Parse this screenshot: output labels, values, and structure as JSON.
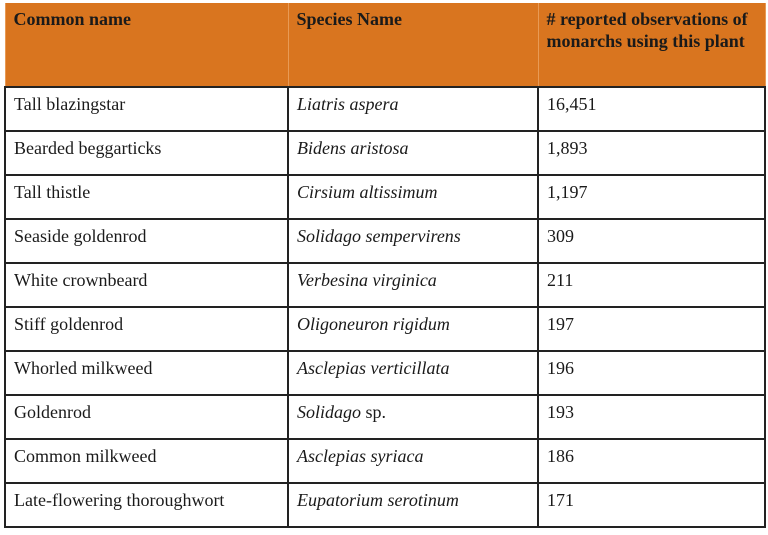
{
  "table": {
    "headers": [
      "Common name",
      "Species Name",
      "# reported observations of monarchs using this plant"
    ],
    "rows": [
      {
        "common": "Tall blazingstar",
        "species_italic": "Liatris aspera",
        "species_plain": "",
        "count": "16,451"
      },
      {
        "common": "Bearded beggarticks",
        "species_italic": "Bidens aristosa",
        "species_plain": "",
        "count": "1,893"
      },
      {
        "common": "Tall thistle",
        "species_italic": "Cirsium altissimum",
        "species_plain": "",
        "count": "1,197"
      },
      {
        "common": "Seaside goldenrod",
        "species_italic": "Solidago sempervirens",
        "species_plain": "",
        "count": "309"
      },
      {
        "common": "White crownbeard",
        "species_italic": "Verbesina virginica",
        "species_plain": "",
        "count": "211"
      },
      {
        "common": "Stiff goldenrod",
        "species_italic": "Oligoneuron rigidum",
        "species_plain": "",
        "count": "197"
      },
      {
        "common": "Whorled milkweed",
        "species_italic": "Asclepias verticillata",
        "species_plain": "",
        "count": "196"
      },
      {
        "common": "Goldenrod",
        "species_italic": "Solidago",
        "species_plain": " sp.",
        "count": "193"
      },
      {
        "common": "Common milkweed",
        "species_italic": "Asclepias syriaca",
        "species_plain": "",
        "count": "186"
      },
      {
        "common": "Late-flowering thoroughwort",
        "species_italic": "Eupatorium serotinum",
        "species_plain": "",
        "count": "171"
      }
    ],
    "header_color": "#D9751F"
  }
}
